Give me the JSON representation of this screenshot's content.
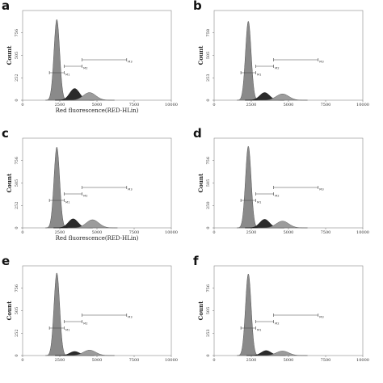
{
  "chart_data": [
    {
      "panel": "a",
      "type": "area",
      "xlabel": "Red fluorescence(RED-HLin)",
      "ylabel": "Count",
      "xlim": [
        0,
        10000
      ],
      "ylim": [
        0,
        1000
      ],
      "xticks": [
        "0",
        "2500",
        "5000",
        "7500",
        "10000"
      ],
      "yticks": [
        "0",
        "252",
        "505",
        "756"
      ],
      "peaks": [
        {
          "x": 2300,
          "height": 900
        },
        {
          "x": 3500,
          "height": 130
        },
        {
          "x": 4500,
          "height": 85
        }
      ],
      "gates": [
        {
          "name": "M1",
          "x": [
            1800,
            2800
          ]
        },
        {
          "name": "M2",
          "x": [
            2800,
            4000
          ]
        },
        {
          "name": "M3",
          "x": [
            4000,
            7000
          ]
        }
      ]
    },
    {
      "panel": "b",
      "type": "area",
      "xlabel": "",
      "ylabel": "Count",
      "xlim": [
        0,
        10000
      ],
      "ylim": [
        0,
        1000
      ],
      "xticks": [
        "0",
        "2500",
        "5000",
        "7500",
        "10000"
      ],
      "yticks": [
        "0",
        "253",
        "505",
        "758"
      ],
      "peaks": [
        {
          "x": 2300,
          "height": 880
        },
        {
          "x": 3400,
          "height": 85
        },
        {
          "x": 4600,
          "height": 70
        }
      ],
      "gates": [
        {
          "name": "M1",
          "x": [
            1800,
            2800
          ]
        },
        {
          "name": "M2",
          "x": [
            2800,
            4000
          ]
        },
        {
          "name": "M3",
          "x": [
            4000,
            7000
          ]
        }
      ]
    },
    {
      "panel": "c",
      "type": "area",
      "xlabel": "Red fluorescence(RED-HLin)",
      "ylabel": "Count",
      "xlim": [
        0,
        10000
      ],
      "ylim": [
        0,
        1000
      ],
      "xticks": [
        "0",
        "2500",
        "5000",
        "7500",
        "10000"
      ],
      "yticks": [
        "0",
        "252",
        "505",
        "756"
      ],
      "peaks": [
        {
          "x": 2300,
          "height": 900
        },
        {
          "x": 3400,
          "height": 100
        },
        {
          "x": 4700,
          "height": 90
        }
      ],
      "gates": [
        {
          "name": "M1",
          "x": [
            1800,
            2800
          ]
        },
        {
          "name": "M2",
          "x": [
            2800,
            4000
          ]
        },
        {
          "name": "M3",
          "x": [
            4000,
            7000
          ]
        }
      ]
    },
    {
      "panel": "d",
      "type": "area",
      "xlabel": "",
      "ylabel": "Count",
      "xlim": [
        0,
        10000
      ],
      "ylim": [
        0,
        1000
      ],
      "xticks": [
        "0",
        "2500",
        "5000",
        "7500",
        "10000"
      ],
      "yticks": [
        "0",
        "250",
        "505",
        "756"
      ],
      "peaks": [
        {
          "x": 2300,
          "height": 910
        },
        {
          "x": 3400,
          "height": 95
        },
        {
          "x": 4600,
          "height": 75
        }
      ],
      "gates": [
        {
          "name": "M1",
          "x": [
            1800,
            2800
          ]
        },
        {
          "name": "M2",
          "x": [
            2800,
            4000
          ]
        },
        {
          "name": "M3",
          "x": [
            4000,
            7000
          ]
        }
      ]
    },
    {
      "panel": "e",
      "type": "area",
      "xlabel": "",
      "ylabel": "Count",
      "xlim": [
        0,
        10000
      ],
      "ylim": [
        0,
        1000
      ],
      "xticks": [
        "0",
        "2500",
        "5000",
        "7500",
        "10000"
      ],
      "yticks": [
        "0",
        "252",
        "505",
        "756"
      ],
      "peaks": [
        {
          "x": 2300,
          "height": 920
        },
        {
          "x": 3500,
          "height": 45
        },
        {
          "x": 4500,
          "height": 60
        }
      ],
      "gates": [
        {
          "name": "M1",
          "x": [
            1800,
            2800
          ]
        },
        {
          "name": "M2",
          "x": [
            2800,
            4000
          ]
        },
        {
          "name": "M3",
          "x": [
            4000,
            7000
          ]
        }
      ]
    },
    {
      "panel": "f",
      "type": "area",
      "xlabel": "",
      "ylabel": "Count",
      "xlim": [
        0,
        10000
      ],
      "ylim": [
        0,
        1000
      ],
      "xticks": [
        "0",
        "2500",
        "5000",
        "7500",
        "10000"
      ],
      "yticks": [
        "0",
        "253",
        "505",
        "756"
      ],
      "peaks": [
        {
          "x": 2300,
          "height": 910
        },
        {
          "x": 3500,
          "height": 55
        },
        {
          "x": 4600,
          "height": 50
        }
      ],
      "gates": [
        {
          "name": "M1",
          "x": [
            1800,
            2800
          ]
        },
        {
          "name": "M2",
          "x": [
            2800,
            4000
          ]
        },
        {
          "name": "M3",
          "x": [
            4000,
            7000
          ]
        }
      ]
    }
  ]
}
